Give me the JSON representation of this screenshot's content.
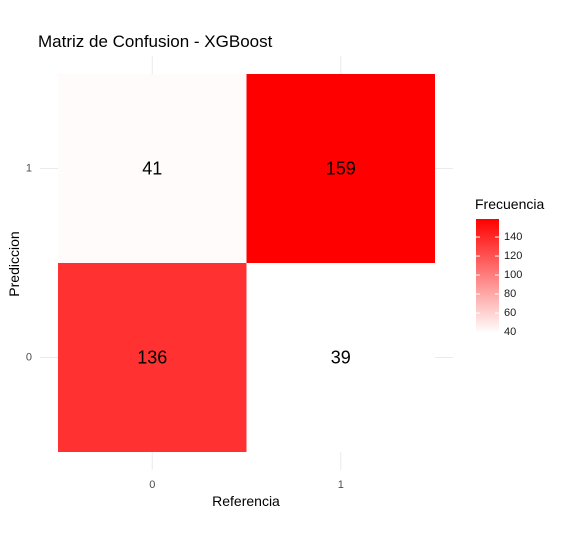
{
  "chart_data": {
    "type": "heatmap",
    "title": "Matriz de Confusion - XGBoost",
    "xlabel": "Referencia",
    "ylabel": "Prediccion",
    "x_categories": [
      "0",
      "1"
    ],
    "y_categories": [
      "0",
      "1"
    ],
    "cells": [
      {
        "x": "0",
        "y": "1",
        "value": 41
      },
      {
        "x": "1",
        "y": "1",
        "value": 159
      },
      {
        "x": "0",
        "y": "0",
        "value": 136
      },
      {
        "x": "1",
        "y": "0",
        "value": 39
      }
    ],
    "legend": {
      "title": "Frecuencia",
      "ticks": [
        40,
        60,
        80,
        100,
        120,
        140
      ],
      "range": [
        39,
        159
      ],
      "low_color": "#ffffff",
      "high_color": "#ff0000",
      "placement": "right"
    },
    "grid": true
  }
}
